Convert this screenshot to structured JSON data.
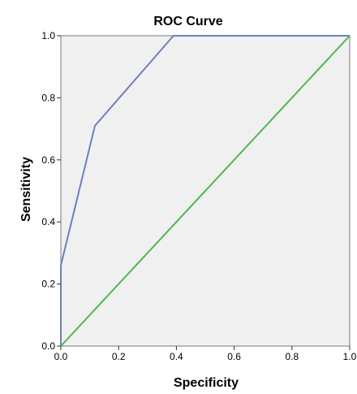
{
  "chart_data": {
    "type": "line",
    "title": "ROC Curve",
    "xlabel": "Specificity",
    "ylabel": "Sensitivity",
    "xlim": [
      0,
      1
    ],
    "ylim": [
      0,
      1
    ],
    "x_ticks": [
      "0.0",
      "0.2",
      "0.4",
      "0.6",
      "0.8",
      "1.0"
    ],
    "y_ticks": [
      "0.0",
      "0.2",
      "0.4",
      "0.6",
      "0.8",
      "1.0"
    ],
    "grid": false,
    "legend": "none",
    "background": "#f0f0f0",
    "series": [
      {
        "color": "#6f7fbf",
        "x": [
          0.0,
          0.0,
          0.0,
          0.118,
          0.39,
          1.0
        ],
        "y": [
          0.0,
          0.06,
          0.26,
          0.71,
          1.0,
          1.0
        ]
      },
      {
        "color": "#4cb84c",
        "x": [
          0.0,
          1.0
        ],
        "y": [
          0.0,
          1.0
        ]
      }
    ]
  }
}
